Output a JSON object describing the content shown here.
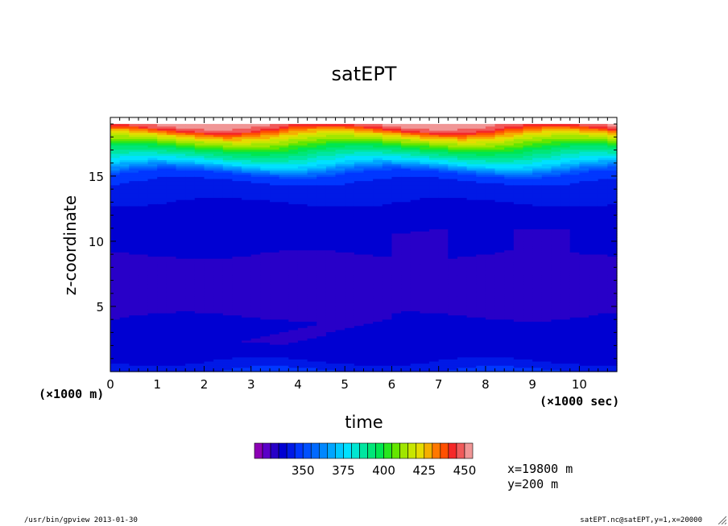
{
  "chart_data": {
    "type": "heatmap",
    "title": "satEPT",
    "xlabel": "time",
    "ylabel": "z-coordinate",
    "x_unit_label": "(×1000 sec)",
    "y_unit_label": "(×1000 m)",
    "xlim": [
      0,
      10.8
    ],
    "ylim": [
      0,
      19.5
    ],
    "x_ticks": [
      "0",
      "1",
      "2",
      "3",
      "4",
      "5",
      "6",
      "7",
      "8",
      "9",
      "10"
    ],
    "y_ticks": [
      "5",
      "10",
      "15"
    ],
    "colorbar": {
      "min": 320,
      "step": 5,
      "levels": 27,
      "tick_labels": [
        "350",
        "375",
        "400",
        "425",
        "450"
      ],
      "colors": [
        "#8c00b4",
        "#5a00c8",
        "#2800c8",
        "#0000d2",
        "#0019e6",
        "#0037ff",
        "#0050ff",
        "#0069ff",
        "#0087ff",
        "#00a5ff",
        "#00c8ff",
        "#00e1ff",
        "#00e6d2",
        "#00e6a0",
        "#00e678",
        "#00e650",
        "#28e61e",
        "#64e600",
        "#a0e600",
        "#c8e600",
        "#e6dc00",
        "#f5af00",
        "#ff7800",
        "#ff5000",
        "#f52828",
        "#f05a5a",
        "#f09696"
      ]
    },
    "profile": [
      {
        "z": 0.0,
        "value": 346
      },
      {
        "z": 0.4,
        "value": 342
      },
      {
        "z": 0.8,
        "value": 340
      },
      {
        "z": 1.2,
        "value": 338
      },
      {
        "z": 2.0,
        "value": 337
      },
      {
        "z": 3.5,
        "value": 336
      },
      {
        "z": 5.0,
        "value": 334
      },
      {
        "z": 7.0,
        "value": 333
      },
      {
        "z": 9.0,
        "value": 335
      },
      {
        "z": 10.5,
        "value": 337
      },
      {
        "z": 12.5,
        "value": 339
      },
      {
        "z": 13.5,
        "value": 341
      },
      {
        "z": 14.5,
        "value": 344
      },
      {
        "z": 15.2,
        "value": 350
      },
      {
        "z": 16.0,
        "value": 375
      },
      {
        "z": 17.0,
        "value": 395
      },
      {
        "z": 17.8,
        "value": 415
      },
      {
        "z": 18.3,
        "value": 430
      },
      {
        "z": 18.7,
        "value": 445
      },
      {
        "z": 19.0,
        "value": 452
      }
    ]
  },
  "annotations": {
    "x_position": "x=19800 m",
    "y_position": "y=200 m"
  },
  "footer": {
    "left": "/usr/bin/gpview  2013-01-30",
    "right": "satEPT.nc@satEPT,y=1,x=20000"
  }
}
